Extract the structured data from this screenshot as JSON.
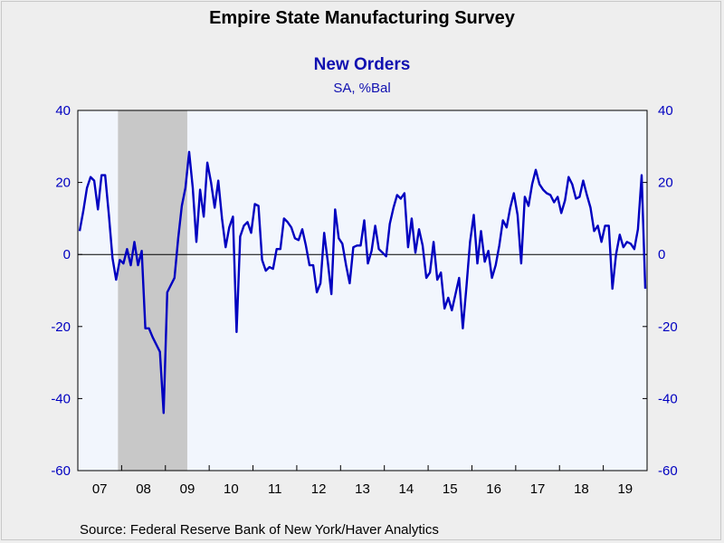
{
  "title": "Empire State Manufacturing Survey",
  "subtitle": "New Orders",
  "units": "SA, %Bal",
  "source": "Source:  Federal Reserve Bank of New York/Haver Analytics",
  "colors": {
    "line": "#0000c0",
    "axis_text": "#0000c0",
    "plot_bg": "#f2f6fd",
    "recession": "#c8c8c8",
    "page_bg": "#eeeeee"
  },
  "chart_data": {
    "type": "line",
    "title": "New Orders",
    "subtitle": "SA, %Bal",
    "xlabel": "",
    "ylabel": "",
    "ylim": [
      -60,
      40
    ],
    "yticks": [
      40,
      20,
      0,
      -20,
      -40,
      -60
    ],
    "ytick_labels_left": [
      "40",
      "20",
      "0",
      "-20",
      "-40",
      "-60"
    ],
    "ytick_labels_right": [
      "40",
      "20",
      "0",
      "-20",
      "-40",
      "-60"
    ],
    "x_range": [
      "2007-01",
      "2019-12"
    ],
    "xtick_labels": [
      "07",
      "08",
      "09",
      "10",
      "11",
      "12",
      "13",
      "14",
      "15",
      "16",
      "17",
      "18",
      "19"
    ],
    "grid": false,
    "zero_line": true,
    "recession_shading": [
      {
        "start": "2007-12",
        "end": "2009-06"
      }
    ],
    "series": [
      {
        "x": [
          "2007-01",
          "2007-02",
          "2007-03",
          "2007-04",
          "2007-05",
          "2007-06",
          "2007-07",
          "2007-08",
          "2007-09",
          "2007-10",
          "2007-11",
          "2007-12",
          "2008-01",
          "2008-02",
          "2008-03",
          "2008-04",
          "2008-05",
          "2008-06",
          "2008-07",
          "2008-08",
          "2008-09",
          "2008-10",
          "2008-11",
          "2008-12",
          "2009-01",
          "2009-02",
          "2009-03",
          "2009-04",
          "2009-05",
          "2009-06",
          "2009-07",
          "2009-08",
          "2009-09",
          "2009-10",
          "2009-11",
          "2009-12",
          "2010-01",
          "2010-02",
          "2010-03",
          "2010-04",
          "2010-05",
          "2010-06",
          "2010-07",
          "2010-08",
          "2010-09",
          "2010-10",
          "2010-11",
          "2010-12",
          "2011-01",
          "2011-02",
          "2011-03",
          "2011-04",
          "2011-05",
          "2011-06",
          "2011-07",
          "2011-08",
          "2011-09",
          "2011-10",
          "2011-11",
          "2011-12",
          "2012-01",
          "2012-02",
          "2012-03",
          "2012-04",
          "2012-05",
          "2012-06",
          "2012-07",
          "2012-08",
          "2012-09",
          "2012-10",
          "2012-11",
          "2012-12",
          "2013-01",
          "2013-02",
          "2013-03",
          "2013-04",
          "2013-05",
          "2013-06",
          "2013-07",
          "2013-08",
          "2013-09",
          "2013-10",
          "2013-11",
          "2013-12",
          "2014-01",
          "2014-02",
          "2014-03",
          "2014-04",
          "2014-05",
          "2014-06",
          "2014-07",
          "2014-08",
          "2014-09",
          "2014-10",
          "2014-11",
          "2014-12",
          "2015-01",
          "2015-02",
          "2015-03",
          "2015-04",
          "2015-05",
          "2015-06",
          "2015-07",
          "2015-08",
          "2015-09",
          "2015-10",
          "2015-11",
          "2015-12",
          "2016-01",
          "2016-02",
          "2016-03",
          "2016-04",
          "2016-05",
          "2016-06",
          "2016-07",
          "2016-08",
          "2016-09",
          "2016-10",
          "2016-11",
          "2016-12",
          "2017-01",
          "2017-02",
          "2017-03",
          "2017-04",
          "2017-05",
          "2017-06",
          "2017-07",
          "2017-08",
          "2017-09",
          "2017-10",
          "2017-11",
          "2017-12",
          "2018-01",
          "2018-02",
          "2018-03",
          "2018-04",
          "2018-05",
          "2018-06",
          "2018-07",
          "2018-08",
          "2018-09",
          "2018-10",
          "2018-11",
          "2018-12",
          "2019-01",
          "2019-02",
          "2019-03",
          "2019-04",
          "2019-05",
          "2019-06",
          "2019-07",
          "2019-08",
          "2019-09",
          "2019-10",
          "2019-11",
          "2019-12"
        ],
        "values": [
          6.5,
          12,
          18.5,
          21.5,
          20.5,
          12.5,
          22,
          22,
          11,
          -1,
          -7,
          -1.5,
          -2.5,
          1.5,
          -3,
          3.5,
          -3,
          1,
          -20.5,
          -20.5,
          -23,
          -25,
          -27,
          -44,
          -10.5,
          -8.5,
          -6.5,
          4.5,
          13.5,
          18.5,
          28.5,
          18.5,
          3.5,
          18,
          10.5,
          25.5,
          20,
          13,
          20.5,
          10,
          2,
          7.5,
          10.5,
          -21.5,
          5,
          8,
          9,
          6,
          14,
          13.5,
          -1.5,
          -4.5,
          -3.5,
          -4,
          1.5,
          1.5,
          10,
          9,
          7.5,
          4.5,
          4,
          7,
          2.5,
          -3,
          -3,
          -10.5,
          -8,
          6,
          -2,
          -11,
          12.5,
          4.5,
          3,
          -3,
          -8,
          2,
          2.5,
          2.5,
          9.5,
          -2.5,
          1,
          8,
          1.5,
          0.5,
          -0.5,
          8.5,
          13,
          16.5,
          15.5,
          17,
          2,
          10,
          0.5,
          7,
          2.5,
          -6.5,
          -5,
          3.5,
          -7,
          -5,
          -15,
          -12,
          -15.5,
          -11,
          -6.5,
          -20.5,
          -9,
          3.5,
          11,
          -2.5,
          6.5,
          -2,
          1,
          -6.5,
          -3,
          2.5,
          9.5,
          7.5,
          13,
          17,
          11,
          -2.5,
          16,
          13.5,
          19.5,
          23.5,
          19.5,
          18,
          17,
          16.5,
          14.5,
          16,
          11.5,
          15,
          21.5,
          19.5,
          15.5,
          16,
          20.5,
          16.5,
          13,
          6.5,
          8,
          3.5,
          8,
          8,
          -9.5,
          0,
          5.5,
          2,
          3.5,
          3,
          1.5,
          7,
          22,
          -9.5
        ]
      }
    ]
  }
}
